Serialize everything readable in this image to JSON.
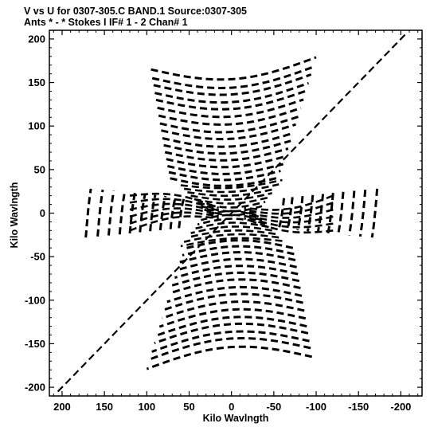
{
  "header": {
    "line1": "V vs U for 0307-305.C BAND.1   Source:0307-305",
    "line2": "Ants * - *     Stokes I   IF# 1 - 2   Chan# 1"
  },
  "chart_data": {
    "type": "scatter",
    "title": "V vs U for 0307-305.C BAND.1   Source:0307-305",
    "subtitle": "Ants * - *     Stokes I   IF# 1 - 2   Chan# 1",
    "xlabel": "Kilo Wavlngth",
    "ylabel": "Kilo Wavlngth",
    "xlim": [
      215,
      -225
    ],
    "ylim": [
      -210,
      210
    ],
    "x_reversed": true,
    "grid": false,
    "legend": "none",
    "xticks": [
      200,
      150,
      100,
      50,
      0,
      -50,
      -100,
      -150,
      -200
    ],
    "xtick_labels": [
      "200",
      "150",
      "100",
      "50",
      "0",
      "-50",
      "-100",
      "-150",
      "-200"
    ],
    "yticks": [
      200,
      150,
      100,
      50,
      0,
      -50,
      -100,
      -150,
      -200
    ],
    "ytick_labels": [
      "200",
      "150",
      "100",
      "50",
      "0",
      "-50",
      "-100",
      "-150",
      "-200"
    ],
    "marker_color": "#000000",
    "description_of_tracks": "u-v coverage tracks: dashed elliptical arcs in conjugate-symmetric pairs",
    "long_diagonal_track": {
      "u_start": -205,
      "v_start": 205,
      "u_end": 205,
      "v_end": -205
    },
    "track_groups": [
      {
        "label_hint": "upper fan",
        "u_range": [
          95,
          -100
        ],
        "v_range": [
          40,
          165
        ]
      },
      {
        "label_hint": "lower fan",
        "u_range": [
          -95,
          100
        ],
        "v_range": [
          -165,
          -40
        ]
      },
      {
        "label_hint": "left wing",
        "u_range": [
          175,
          60
        ],
        "v_range": [
          -35,
          35
        ]
      },
      {
        "label_hint": "right wing",
        "u_range": [
          -60,
          -175
        ],
        "v_range": [
          -35,
          35
        ]
      }
    ]
  }
}
